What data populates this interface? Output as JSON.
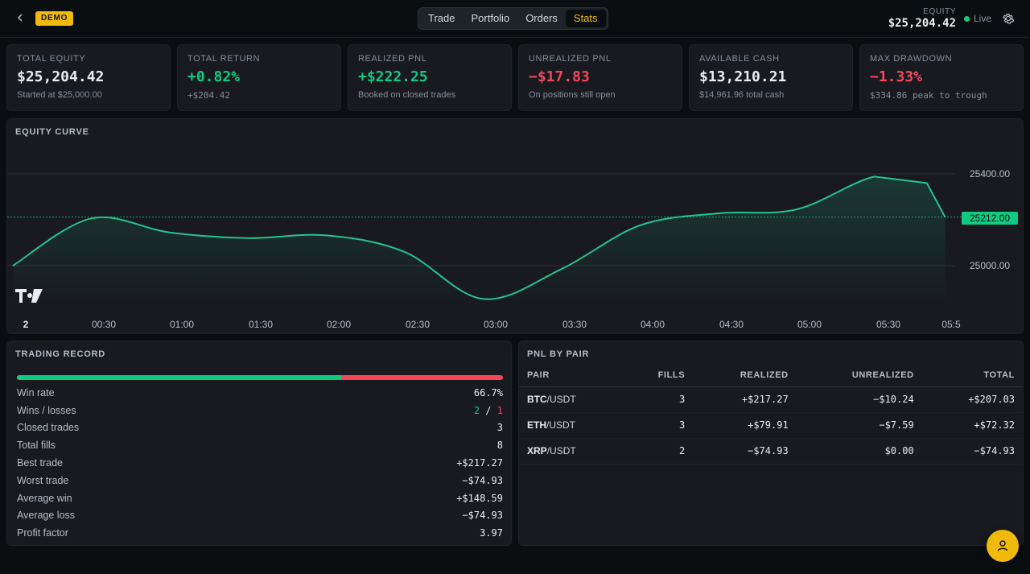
{
  "header": {
    "back_icon": "chevron-left-icon",
    "badge": "DEMO",
    "tabs": [
      {
        "label": "Trade",
        "active": false
      },
      {
        "label": "Portfolio",
        "active": false
      },
      {
        "label": "Orders",
        "active": false
      },
      {
        "label": "Stats",
        "active": true
      }
    ],
    "equity_label": "EQUITY",
    "equity_value": "$25,204.42",
    "live_label": "Live",
    "settings_icon": "gear-icon"
  },
  "cards": [
    {
      "label": "TOTAL EQUITY",
      "value": "$25,204.42",
      "sub": "Started at $25,000.00",
      "tone": "white"
    },
    {
      "label": "TOTAL RETURN",
      "value": "+0.82%",
      "sub": "+$204.42",
      "tone": "green"
    },
    {
      "label": "REALIZED PNL",
      "value": "+$222.25",
      "sub": "Booked on closed trades",
      "tone": "green"
    },
    {
      "label": "UNREALIZED PNL",
      "value": "−$17.83",
      "sub": "On positions still open",
      "tone": "red"
    },
    {
      "label": "AVAILABLE CASH",
      "value": "$13,210.21",
      "sub": "$14,961.96 total cash",
      "tone": "white"
    },
    {
      "label": "MAX DRAWDOWN",
      "value": "−1.33%",
      "sub": "$334.86 peak to trough",
      "tone": "red"
    }
  ],
  "equity_curve": {
    "title": "EQUITY CURVE",
    "x_ticks": [
      "2",
      "00:30",
      "01:00",
      "01:30",
      "02:00",
      "02:30",
      "03:00",
      "03:30",
      "04:00",
      "04:30",
      "05:00",
      "05:30",
      "05:5"
    ],
    "y_ticks": [
      "25400.00",
      "25000.00"
    ],
    "current_label": "25212.00",
    "logo_icon": "tradingview-logo-icon",
    "colors": {
      "line": "#25c48a",
      "current": "#0ecb81"
    }
  },
  "chart_data": {
    "type": "line",
    "x": [
      "00:00",
      "00:30",
      "01:00",
      "01:30",
      "02:00",
      "02:30",
      "03:00",
      "03:30",
      "04:00",
      "04:30",
      "05:00",
      "05:30",
      "05:50",
      "05:57"
    ],
    "values": [
      25000,
      25206,
      25145,
      25120,
      25132,
      25060,
      24855,
      24985,
      25175,
      25228,
      25245,
      25388,
      25360,
      25212
    ],
    "ylim": [
      24800,
      25420
    ],
    "current_value": 25212
  },
  "trading_record": {
    "title": "TRADING RECORD",
    "win_rate_fraction": 0.667,
    "rows": [
      {
        "label": "Win rate",
        "value": "66.7%"
      },
      {
        "label": "Closed trades",
        "value": "3"
      },
      {
        "label": "Total fills",
        "value": "8"
      },
      {
        "label": "Best trade",
        "value": "+$217.27"
      },
      {
        "label": "Worst trade",
        "value": "−$74.93"
      },
      {
        "label": "Average win",
        "value": "+$148.59"
      },
      {
        "label": "Average loss",
        "value": "−$74.93"
      },
      {
        "label": "Profit factor",
        "value": "3.97"
      }
    ],
    "wins_losses_label": "Wins / losses",
    "wins": "2",
    "separator": "/",
    "losses": "1"
  },
  "pnl_by_pair": {
    "title": "PNL BY PAIR",
    "headers": [
      "PAIR",
      "FILLS",
      "REALIZED",
      "UNREALIZED",
      "TOTAL"
    ],
    "rows": [
      {
        "base": "BTC",
        "quote": "/USDT",
        "fills": "3",
        "realized": "+$217.27",
        "realized_tone": "green",
        "unrealized": "−$10.24",
        "unrealized_tone": "red",
        "total": "+$207.03",
        "total_tone": "green"
      },
      {
        "base": "ETH",
        "quote": "/USDT",
        "fills": "3",
        "realized": "+$79.91",
        "realized_tone": "green",
        "unrealized": "−$7.59",
        "unrealized_tone": "red",
        "total": "+$72.32",
        "total_tone": "green"
      },
      {
        "base": "XRP",
        "quote": "/USDT",
        "fills": "2",
        "realized": "−$74.93",
        "realized_tone": "red",
        "unrealized": "$0.00",
        "unrealized_tone": "white",
        "total": "−$74.93",
        "total_tone": "red"
      }
    ]
  },
  "fab_icon": "user-icon"
}
